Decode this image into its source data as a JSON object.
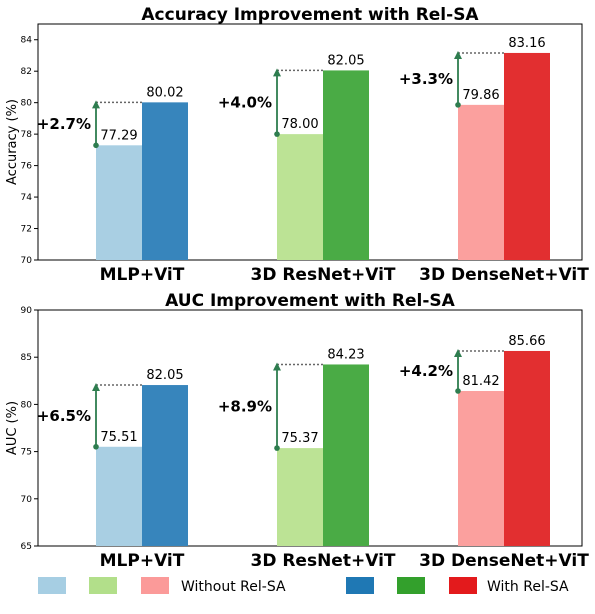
{
  "chart_data": [
    {
      "type": "bar",
      "title": "Accuracy Improvement with Rel-SA",
      "ylabel": "Accuracy (%)",
      "xlabel": "",
      "ylim": [
        70,
        85
      ],
      "yticks": [
        "70",
        "72",
        "74",
        "76",
        "78",
        "80",
        "82",
        "84"
      ],
      "ytick_values": [
        70,
        72,
        74,
        76,
        78,
        80,
        82,
        84
      ],
      "categories": [
        "MLP+ViT",
        "3D ResNet+ViT",
        "3D DenseNet+ViT"
      ],
      "series": [
        {
          "name": "Without Rel-SA",
          "values": [
            77.29,
            78.0,
            79.86
          ],
          "labels": [
            "77.29",
            "78.00",
            "79.86"
          ]
        },
        {
          "name": "With Rel-SA",
          "values": [
            80.02,
            82.05,
            83.16
          ],
          "labels": [
            "80.02",
            "82.05",
            "83.16"
          ]
        }
      ],
      "improvements": [
        "+2.7%",
        "+4.0%",
        "+3.3%"
      ],
      "grid": false
    },
    {
      "type": "bar",
      "title": "AUC Improvement with Rel-SA",
      "ylabel": "AUC (%)",
      "xlabel": "",
      "ylim": [
        65,
        90
      ],
      "yticks": [
        "65",
        "70",
        "75",
        "80",
        "85",
        "90"
      ],
      "ytick_values": [
        65,
        70,
        75,
        80,
        85,
        90
      ],
      "categories": [
        "MLP+ViT",
        "3D ResNet+ViT",
        "3D DenseNet+ViT"
      ],
      "series": [
        {
          "name": "Without Rel-SA",
          "values": [
            75.51,
            75.37,
            81.42
          ],
          "labels": [
            "75.51",
            "75.37",
            "81.42"
          ]
        },
        {
          "name": "With Rel-SA",
          "values": [
            82.05,
            84.23,
            85.66
          ],
          "labels": [
            "82.05",
            "84.23",
            "85.66"
          ]
        }
      ],
      "improvements": [
        "+6.5%",
        "+8.9%",
        "+4.2%"
      ],
      "grid": false
    }
  ],
  "colors": {
    "without": [
      "#a9cfe3",
      "#bce395",
      "#fba09e"
    ],
    "with": [
      "#3785bc",
      "#4aab45",
      "#e22f30"
    ],
    "legend_without": [
      "#a6cee3",
      "#b2df8a",
      "#fb9a99"
    ],
    "legend_with": [
      "#1f78b4",
      "#33a02c",
      "#e31a1c"
    ],
    "arrow": "#2e7d4f",
    "dotted": "#666666"
  },
  "legend": {
    "position": "bottom",
    "without_label": "Without Rel-SA",
    "with_label": "With Rel-SA"
  }
}
